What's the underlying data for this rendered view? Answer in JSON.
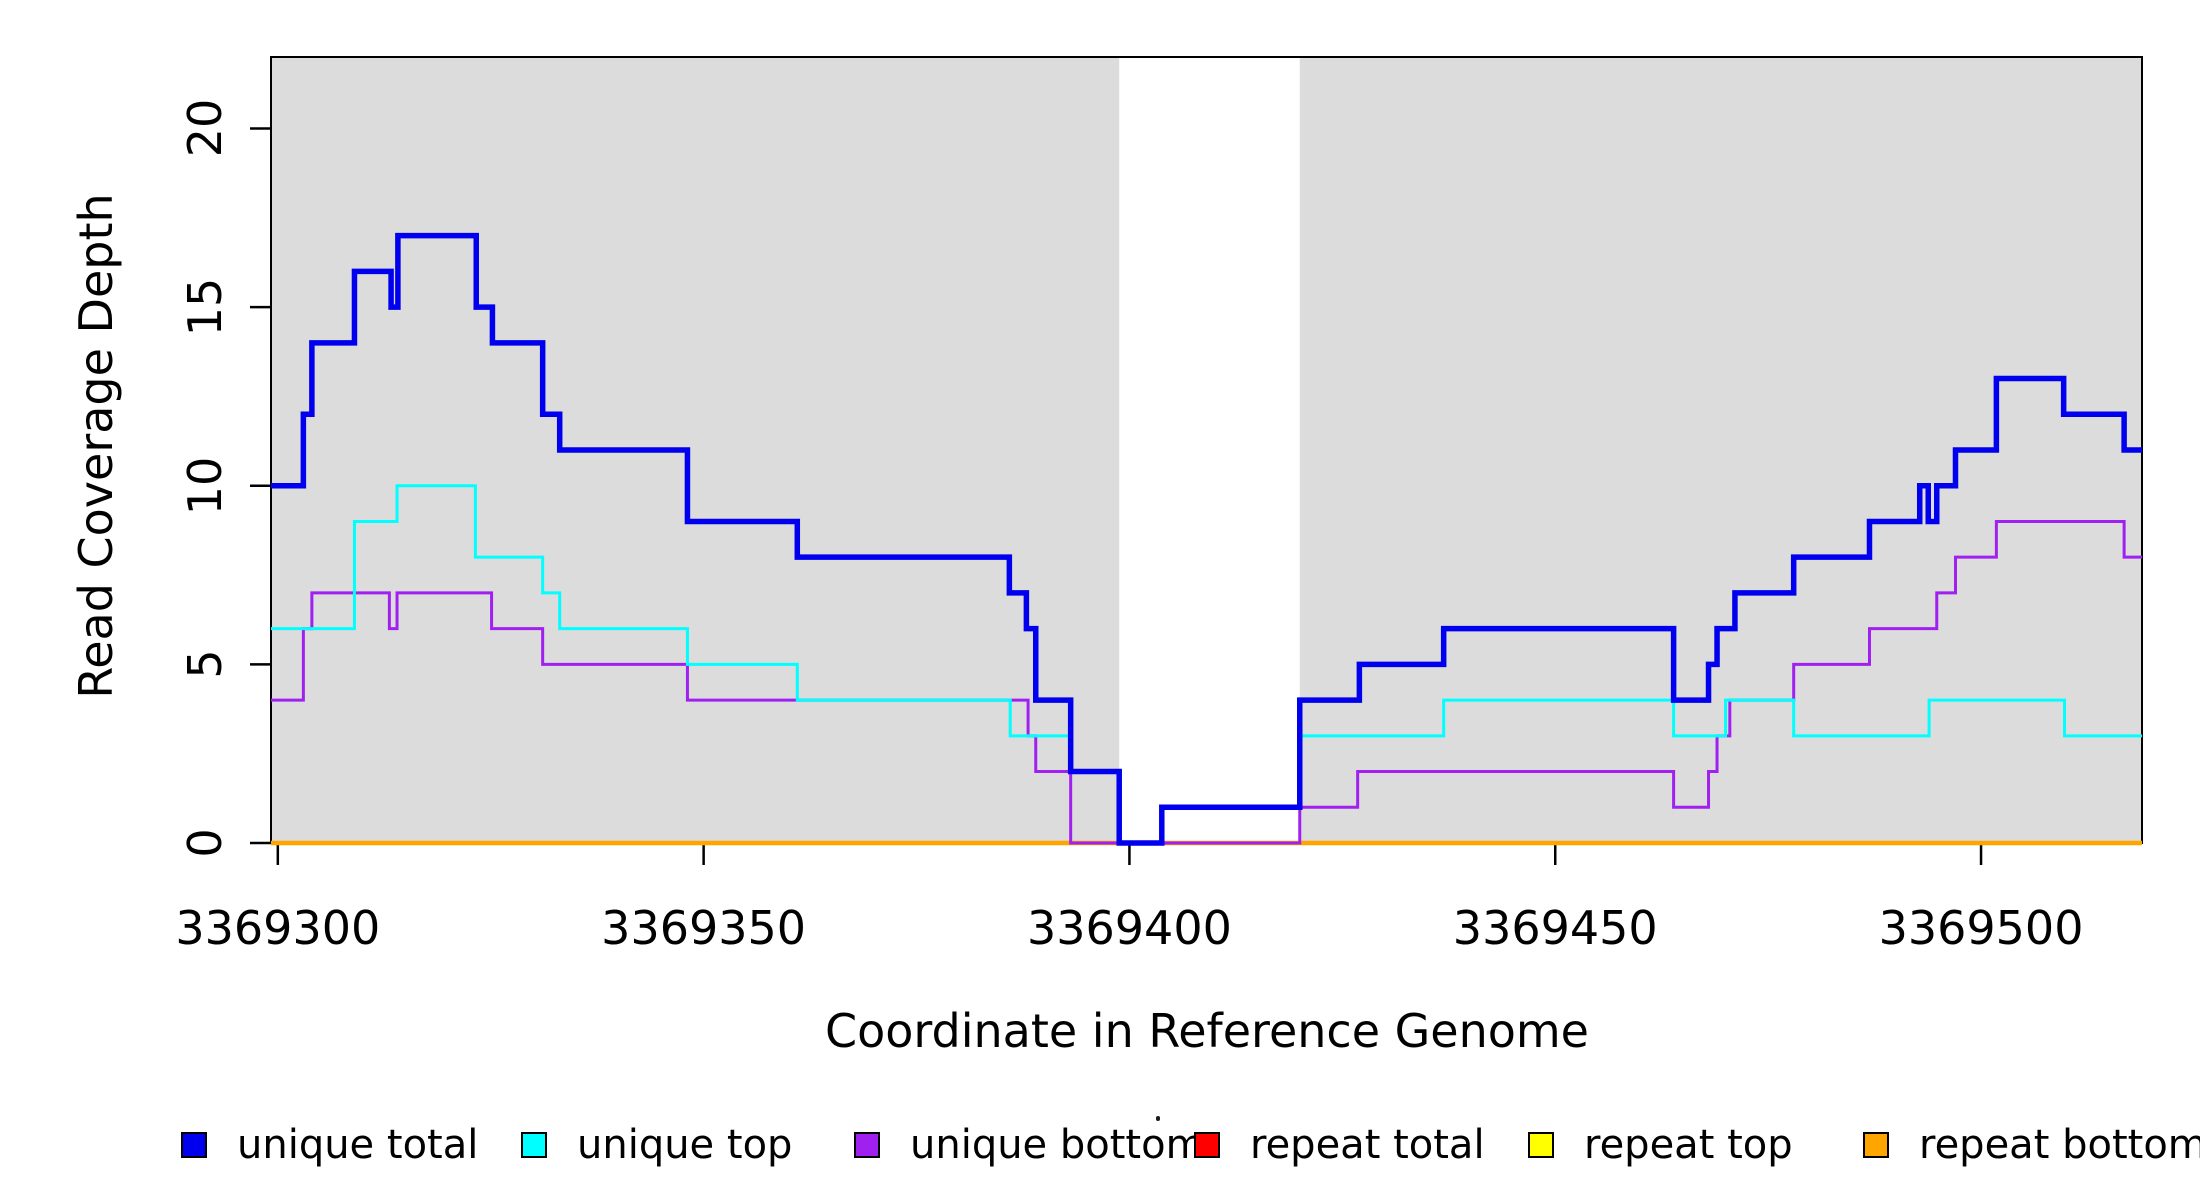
{
  "chart_data": {
    "type": "line",
    "step_style": "post",
    "title": "",
    "xlabel": "Coordinate in Reference Genome",
    "ylabel": "Read Coverage Depth",
    "xlim": [
      3369299.2,
      3369518.9
    ],
    "ylim": [
      0,
      22.0
    ],
    "x_ticks": [
      3369300,
      3369350,
      3369400,
      3369450,
      3369500
    ],
    "y_ticks": [
      0,
      5,
      10,
      15,
      20
    ],
    "grid": false,
    "plot_background": "#ffffff",
    "shaded_bands": {
      "color": "#DCDCDC",
      "regions": [
        [
          3369299.2,
          3369398.8
        ],
        [
          3369420.0,
          3369518.9
        ]
      ]
    },
    "series": [
      {
        "name": "repeat total",
        "color": "#FF0000",
        "width": 3,
        "breakpoints": [
          [
            3369299.2,
            0
          ]
        ]
      },
      {
        "name": "repeat top",
        "color": "#FFFF00",
        "width": 3,
        "breakpoints": [
          [
            3369299.2,
            0
          ]
        ]
      },
      {
        "name": "repeat bottom",
        "color": "#FFA500",
        "width": 4.5,
        "breakpoints": [
          [
            3369299.2,
            0
          ]
        ]
      },
      {
        "name": "unique bottom",
        "color": "#A020F0",
        "width": 3,
        "breakpoints": [
          [
            3369299.2,
            4
          ],
          [
            3369303,
            6
          ],
          [
            3369304,
            7
          ],
          [
            3369313.1,
            6
          ],
          [
            3369314,
            7
          ],
          [
            3369325.1,
            6
          ],
          [
            3369331.1,
            5
          ],
          [
            3369348.1,
            4
          ],
          [
            3369388.1,
            3
          ],
          [
            3369389,
            2
          ],
          [
            3369393.1,
            0
          ],
          [
            3369420,
            1
          ],
          [
            3369426.8,
            2
          ],
          [
            3369463.9,
            1
          ],
          [
            3369468,
            2
          ],
          [
            3369469,
            3
          ],
          [
            3369470.5,
            4
          ],
          [
            3369478,
            5
          ],
          [
            3369486.9,
            6
          ],
          [
            3369494.8,
            7
          ],
          [
            3369497,
            8
          ],
          [
            3369501.8,
            9
          ],
          [
            3369516.8,
            8
          ]
        ]
      },
      {
        "name": "unique top",
        "color": "#00FFFF",
        "width": 3,
        "breakpoints": [
          [
            3369299.2,
            6
          ],
          [
            3369309,
            9
          ],
          [
            3369314,
            10
          ],
          [
            3369323.2,
            8
          ],
          [
            3369331.1,
            7
          ],
          [
            3369333.1,
            6
          ],
          [
            3369348.1,
            5
          ],
          [
            3369361,
            4
          ],
          [
            3369386,
            3
          ],
          [
            3369393.1,
            2
          ],
          [
            3369398.8,
            0
          ],
          [
            3369403.8,
            1
          ],
          [
            3369420,
            3
          ],
          [
            3369436.9,
            4
          ],
          [
            3369463.9,
            3
          ],
          [
            3369470,
            4
          ],
          [
            3369478,
            3
          ],
          [
            3369493.9,
            4
          ],
          [
            3369509.8,
            3
          ]
        ]
      },
      {
        "name": "unique total",
        "color": "#0000EE",
        "width": 5.5,
        "breakpoints": [
          [
            3369299.2,
            10
          ],
          [
            3369303,
            12
          ],
          [
            3369304,
            14
          ],
          [
            3369309,
            16
          ],
          [
            3369313.3,
            15
          ],
          [
            3369314.1,
            17
          ],
          [
            3369323.3,
            15
          ],
          [
            3369325.2,
            14
          ],
          [
            3369331.1,
            12
          ],
          [
            3369333.1,
            11
          ],
          [
            3369348.1,
            9
          ],
          [
            3369361,
            8
          ],
          [
            3369385.9,
            7
          ],
          [
            3369387.9,
            6
          ],
          [
            3369389,
            4
          ],
          [
            3369393.1,
            2
          ],
          [
            3369398.8,
            0
          ],
          [
            3369403.8,
            1
          ],
          [
            3369420,
            4
          ],
          [
            3369427,
            5
          ],
          [
            3369436.9,
            6
          ],
          [
            3369463.9,
            4
          ],
          [
            3369468,
            5
          ],
          [
            3369469,
            6
          ],
          [
            3369471.1,
            7
          ],
          [
            3369478,
            8
          ],
          [
            3369486.9,
            9
          ],
          [
            3369492.8,
            10
          ],
          [
            3369493.8,
            9
          ],
          [
            3369494.8,
            10
          ],
          [
            3369497,
            11
          ],
          [
            3369501.8,
            13
          ],
          [
            3369509.7,
            12
          ],
          [
            3369516.8,
            11
          ]
        ]
      }
    ],
    "legend": {
      "position": "bottom",
      "items": [
        {
          "label": "unique total",
          "color": "#0000EE"
        },
        {
          "label": "unique top",
          "color": "#00FFFF"
        },
        {
          "label": "unique bottom",
          "color": "#A020F0"
        },
        {
          "label": "repeat total",
          "color": "#FF0000"
        },
        {
          "label": "repeat top",
          "color": "#FFFF00"
        },
        {
          "label": "repeat bottom",
          "color": "#FFA500"
        }
      ]
    }
  }
}
